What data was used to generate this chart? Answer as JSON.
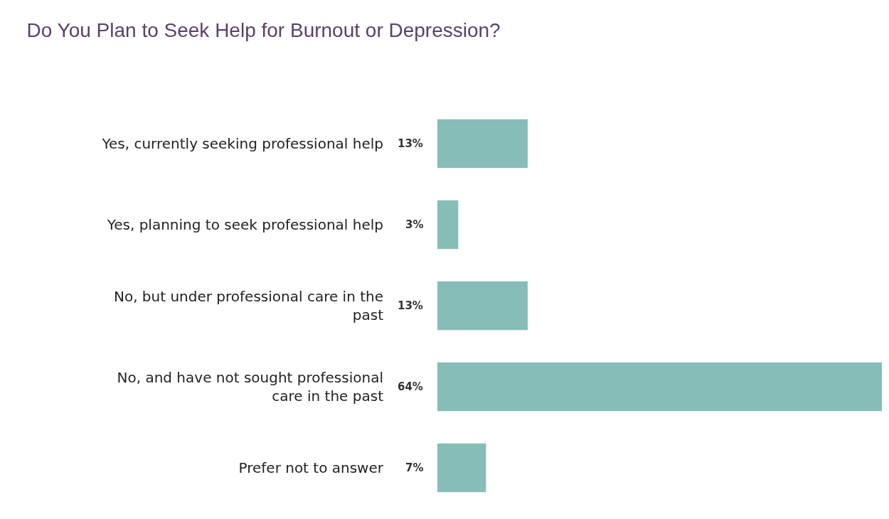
{
  "chart_data": {
    "type": "bar",
    "orientation": "horizontal",
    "title": "Do You Plan to Seek Help for Burnout or Depression?",
    "categories": [
      "Yes, currently seeking professional help",
      "Yes, planning to seek professional help",
      "No, but under professional care in the past",
      "No, and have not sought professional care in the past",
      "Prefer not to answer"
    ],
    "values": [
      13,
      3,
      13,
      64,
      7
    ],
    "value_labels": [
      "13%",
      "3%",
      "13%",
      "64%",
      "7%"
    ],
    "color": "#86bdb8",
    "legend": false
  }
}
